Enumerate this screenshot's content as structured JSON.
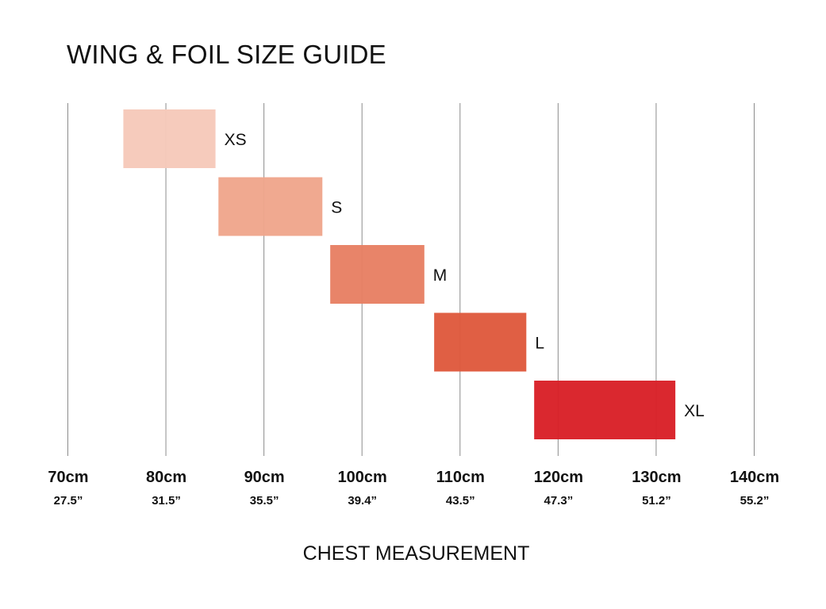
{
  "chart_data": {
    "type": "bar",
    "orientation": "horizontal-range",
    "title": "WING & FOIL SIZE GUIDE",
    "xlabel": "CHEST MEASUREMENT",
    "ylabel": "",
    "xlim": [
      70,
      140
    ],
    "grid": true,
    "legend": "none",
    "ticks": [
      {
        "cm": "70cm",
        "inch": "27.5”"
      },
      {
        "cm": "80cm",
        "inch": "31.5”"
      },
      {
        "cm": "90cm",
        "inch": "35.5”"
      },
      {
        "cm": "100cm",
        "inch": "39.4”"
      },
      {
        "cm": "110cm",
        "inch": "43.5”"
      },
      {
        "cm": "120cm",
        "inch": "47.3”"
      },
      {
        "cm": "130cm",
        "inch": "51.2”"
      },
      {
        "cm": "140cm",
        "inch": "55.2”"
      }
    ],
    "tick_values": [
      70,
      80,
      90,
      100,
      110,
      120,
      130,
      140
    ],
    "categories": [
      "XS",
      "S",
      "M",
      "L",
      "XL"
    ],
    "ranges": [
      {
        "size": "XS",
        "start": 75.7,
        "end": 85.1,
        "color": "#f6c9b9"
      },
      {
        "size": "S",
        "start": 85.4,
        "end": 96.0,
        "color": "#efa68b"
      },
      {
        "size": "M",
        "start": 96.8,
        "end": 106.4,
        "color": "#e77f63"
      },
      {
        "size": "L",
        "start": 107.4,
        "end": 116.8,
        "color": "#df583c"
      },
      {
        "size": "XL",
        "start": 117.6,
        "end": 132.0,
        "color": "#d91f27"
      }
    ]
  }
}
